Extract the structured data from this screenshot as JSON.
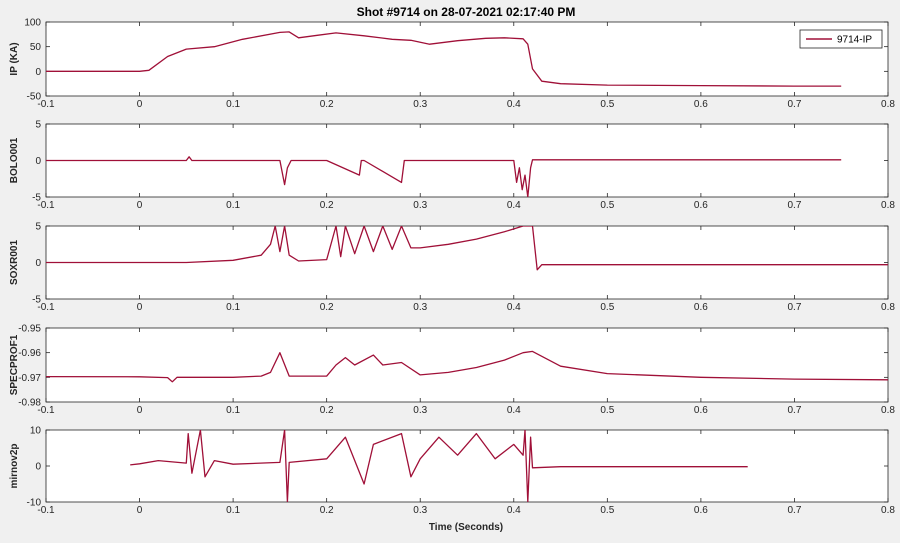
{
  "figure": {
    "title": "Shot #9714 on 28-07-2021 02:17:40 PM",
    "xlabel": "Time (Seconds)"
  },
  "colors": {
    "line": "#a01038",
    "axes_bg": "#ffffff",
    "figure_bg": "#f0f0f0",
    "axis": "#262626"
  },
  "chart_data": [
    {
      "type": "line",
      "ylabel": "IP (KA)",
      "xlim": [
        -0.1,
        0.8
      ],
      "ylim": [
        -50,
        100
      ],
      "yticks": [
        -50,
        0,
        50,
        100
      ],
      "xticks": [
        -0.1,
        0,
        0.1,
        0.2,
        0.3,
        0.4,
        0.5,
        0.6,
        0.7,
        0.8
      ],
      "grid": false,
      "legend": {
        "position": "top-right",
        "entries": [
          "9714-IP"
        ]
      },
      "series": [
        {
          "name": "9714-IP",
          "x": [
            -0.1,
            0.0,
            0.01,
            0.03,
            0.05,
            0.08,
            0.11,
            0.15,
            0.16,
            0.17,
            0.19,
            0.21,
            0.24,
            0.27,
            0.29,
            0.31,
            0.34,
            0.37,
            0.39,
            0.41,
            0.415,
            0.42,
            0.43,
            0.45,
            0.5,
            0.6,
            0.7,
            0.75
          ],
          "y": [
            0,
            0,
            2,
            30,
            45,
            50,
            65,
            79,
            80,
            68,
            73,
            78,
            72,
            65,
            63,
            55,
            62,
            67,
            68,
            66,
            55,
            5,
            -20,
            -25,
            -28,
            -29,
            -30,
            -30
          ]
        }
      ]
    },
    {
      "type": "line",
      "ylabel": "BOLO001",
      "xlim": [
        -0.1,
        0.8
      ],
      "ylim": [
        -5,
        5
      ],
      "yticks": [
        -5,
        0,
        5
      ],
      "xticks": [
        -0.1,
        0,
        0.1,
        0.2,
        0.3,
        0.4,
        0.5,
        0.6,
        0.7,
        0.8
      ],
      "grid": false,
      "series": [
        {
          "x": [
            -0.1,
            0.05,
            0.053,
            0.056,
            0.15,
            0.155,
            0.158,
            0.162,
            0.2,
            0.235,
            0.237,
            0.24,
            0.28,
            0.283,
            0.286,
            0.35,
            0.4,
            0.403,
            0.406,
            0.409,
            0.412,
            0.415,
            0.418,
            0.42,
            0.5,
            0.6,
            0.75
          ],
          "y": [
            0,
            0,
            0.5,
            0,
            0,
            -3.3,
            -1,
            0,
            0,
            -2,
            0,
            0,
            -3,
            0,
            0,
            0,
            0,
            -3,
            -1,
            -4,
            -2,
            -5,
            -1,
            0.1,
            0.1,
            0.1,
            0.1
          ]
        }
      ]
    },
    {
      "type": "line",
      "ylabel": "SOXR001",
      "xlim": [
        -0.1,
        0.8
      ],
      "ylim": [
        -5,
        5
      ],
      "yticks": [
        -5,
        0,
        5
      ],
      "xticks": [
        -0.1,
        0,
        0.1,
        0.2,
        0.3,
        0.4,
        0.5,
        0.6,
        0.7,
        0.8
      ],
      "grid": false,
      "series": [
        {
          "x": [
            -0.1,
            0.05,
            0.1,
            0.13,
            0.14,
            0.145,
            0.15,
            0.155,
            0.16,
            0.17,
            0.2,
            0.21,
            0.215,
            0.22,
            0.23,
            0.24,
            0.25,
            0.26,
            0.27,
            0.28,
            0.29,
            0.3,
            0.33,
            0.36,
            0.39,
            0.41,
            0.42,
            0.425,
            0.43,
            0.5,
            0.6,
            0.7,
            0.8
          ],
          "y": [
            0,
            0,
            0.3,
            1.0,
            2.5,
            5,
            1.5,
            5,
            1,
            0.2,
            0.4,
            5,
            0.8,
            5,
            1.2,
            5,
            1.5,
            5,
            1.8,
            5,
            2,
            2,
            2.5,
            3.2,
            4.2,
            5,
            5,
            -1,
            -0.3,
            -0.3,
            -0.3,
            -0.3,
            -0.3
          ]
        }
      ]
    },
    {
      "type": "line",
      "ylabel": "SPECPROF1",
      "xlim": [
        -0.1,
        0.8
      ],
      "ylim": [
        -0.98,
        -0.95
      ],
      "yticks": [
        -0.98,
        -0.97,
        -0.96,
        -0.95
      ],
      "xticks": [
        -0.1,
        0,
        0.1,
        0.2,
        0.3,
        0.4,
        0.5,
        0.6,
        0.7,
        0.8
      ],
      "grid": false,
      "series": [
        {
          "x": [
            -0.1,
            0.0,
            0.03,
            0.035,
            0.04,
            0.1,
            0.13,
            0.14,
            0.15,
            0.16,
            0.2,
            0.21,
            0.22,
            0.23,
            0.25,
            0.26,
            0.28,
            0.3,
            0.33,
            0.36,
            0.39,
            0.41,
            0.42,
            0.45,
            0.5,
            0.6,
            0.7,
            0.8
          ],
          "y": [
            -0.9697,
            -0.9698,
            -0.9701,
            -0.9718,
            -0.97,
            -0.97,
            -0.9695,
            -0.968,
            -0.96,
            -0.9695,
            -0.9695,
            -0.965,
            -0.962,
            -0.965,
            -0.961,
            -0.965,
            -0.964,
            -0.969,
            -0.968,
            -0.966,
            -0.963,
            -0.96,
            -0.9595,
            -0.9655,
            -0.9685,
            -0.97,
            -0.9707,
            -0.971
          ]
        }
      ]
    },
    {
      "type": "line",
      "ylabel": "mirnov2p",
      "xlim": [
        -0.1,
        0.8
      ],
      "ylim": [
        -10,
        10
      ],
      "yticks": [
        -10,
        0,
        10
      ],
      "xticks": [
        -0.1,
        0,
        0.1,
        0.2,
        0.3,
        0.4,
        0.5,
        0.6,
        0.7,
        0.8
      ],
      "grid": false,
      "series": [
        {
          "x": [
            -0.01,
            0.0,
            0.02,
            0.05,
            0.052,
            0.056,
            0.065,
            0.07,
            0.08,
            0.1,
            0.15,
            0.155,
            0.158,
            0.16,
            0.2,
            0.22,
            0.24,
            0.25,
            0.28,
            0.29,
            0.3,
            0.32,
            0.34,
            0.36,
            0.38,
            0.4,
            0.41,
            0.412,
            0.415,
            0.418,
            0.42,
            0.45,
            0.5,
            0.6,
            0.65
          ],
          "y": [
            0.3,
            0.6,
            1.5,
            0.8,
            9,
            -2,
            10,
            -3,
            1.5,
            0.5,
            1,
            10,
            -10,
            1,
            2,
            8,
            -5,
            6,
            9,
            -3,
            2,
            8,
            3,
            9,
            2,
            6,
            3,
            10,
            -10,
            8,
            -0.5,
            -0.2,
            -0.2,
            -0.2,
            -0.2
          ]
        }
      ]
    }
  ]
}
